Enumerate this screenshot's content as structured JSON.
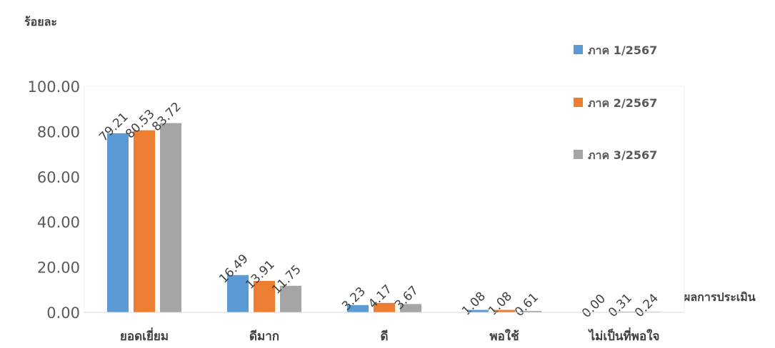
{
  "chart_data": {
    "type": "bar",
    "ylabel": "ร้อยละ",
    "xlabel": "ผลการประเมิน",
    "ylim": [
      0,
      100
    ],
    "yticks": [
      "0.00",
      "20.00",
      "40.00",
      "60.00",
      "80.00",
      "100.00"
    ],
    "categories": [
      "ยอดเยี่ยม",
      "ดีมาก",
      "ดี",
      "พอใช้",
      "ไม่เป็นที่พอใจ"
    ],
    "series": [
      {
        "name": "ภาค 1/2567",
        "color": "#5b9bd5",
        "values": [
          79.21,
          16.49,
          3.23,
          1.08,
          0.0
        ],
        "labels": [
          "79.21",
          "16.49",
          "3.23",
          "1.08",
          "0.00"
        ]
      },
      {
        "name": "ภาค 2/2567",
        "color": "#ed7d31",
        "values": [
          80.53,
          13.91,
          4.17,
          1.08,
          0.31
        ],
        "labels": [
          "80.53",
          "13.91",
          "4.17",
          "1.08",
          "0.31"
        ]
      },
      {
        "name": "ภาค 3/2567",
        "color": "#a5a5a5",
        "values": [
          83.72,
          11.75,
          3.67,
          0.61,
          0.24
        ],
        "labels": [
          "83.72",
          "11.75",
          "3.67",
          "0.61",
          "0.24"
        ]
      }
    ],
    "legend_position": "right",
    "grid": false
  }
}
